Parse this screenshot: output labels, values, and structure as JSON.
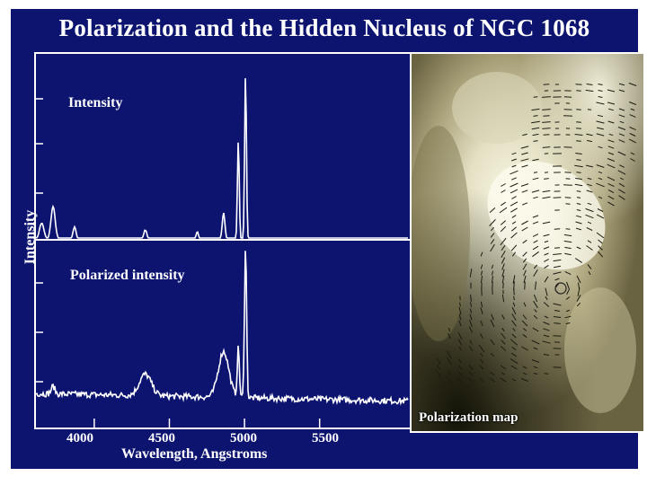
{
  "title": "Polarization and the Hidden Nucleus of NGC 1068",
  "colors": {
    "background": "#0c1470",
    "trace": "#ffffff",
    "text": "#ffffff"
  },
  "chart_data": {
    "type": "line",
    "title": "Polarization and the Hidden Nucleus of NGC 1068",
    "xlabel": "Wavelength, Angstroms",
    "ylabel": "Intensity",
    "xlim": [
      3600,
      6100
    ],
    "x_ticks": [
      4000,
      4500,
      5000,
      5500
    ],
    "grid": false,
    "series": [
      {
        "name": "Intensity",
        "lines": [
          {
            "x": 3650,
            "amp": 0.1,
            "w": 15
          },
          {
            "x": 3726,
            "amp": 0.2,
            "w": 14
          },
          {
            "x": 3869,
            "amp": 0.08,
            "w": 10
          },
          {
            "x": 4340,
            "amp": 0.06,
            "w": 10
          },
          {
            "x": 4686,
            "amp": 0.05,
            "w": 8
          },
          {
            "x": 4861,
            "amp": 0.16,
            "w": 9
          },
          {
            "x": 4959,
            "amp": 0.6,
            "w": 6
          },
          {
            "x": 5007,
            "amp": 1.0,
            "w": 6
          }
        ]
      },
      {
        "name": "Polarized intensity",
        "lines": [
          {
            "x": 3726,
            "amp": 0.05,
            "w": 12
          },
          {
            "x": 4340,
            "amp": 0.14,
            "w": 40
          },
          {
            "x": 4861,
            "amp": 0.3,
            "w": 35
          },
          {
            "x": 4959,
            "amp": 0.32,
            "w": 7
          },
          {
            "x": 5007,
            "amp": 1.0,
            "w": 7
          }
        ]
      }
    ]
  },
  "panels": {
    "top_label": "Intensity",
    "bottom_label": "Polarized intensity"
  },
  "map": {
    "label": "Polarization map"
  }
}
